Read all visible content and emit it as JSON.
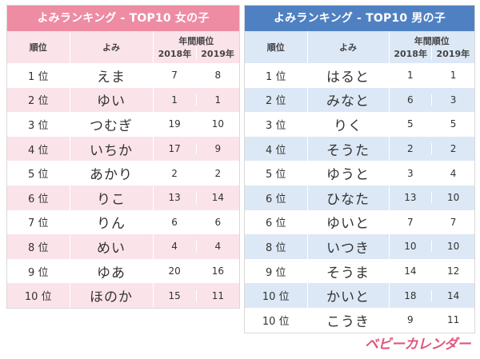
{
  "girls": {
    "title": "よみランキング - TOP10 女の子",
    "headers": {
      "rank": "順位",
      "name": "よみ",
      "yearly": "年間順位",
      "year1": "2018年",
      "year2": "2019年"
    },
    "rows": [
      {
        "rank": "1 位",
        "name": "えま",
        "y2018": "7",
        "y2019": "8"
      },
      {
        "rank": "2 位",
        "name": "ゆい",
        "y2018": "1",
        "y2019": "1"
      },
      {
        "rank": "3 位",
        "name": "つむぎ",
        "y2018": "19",
        "y2019": "10"
      },
      {
        "rank": "4 位",
        "name": "いちか",
        "y2018": "17",
        "y2019": "9"
      },
      {
        "rank": "5 位",
        "name": "あかり",
        "y2018": "2",
        "y2019": "2"
      },
      {
        "rank": "6 位",
        "name": "りこ",
        "y2018": "13",
        "y2019": "14"
      },
      {
        "rank": "7 位",
        "name": "りん",
        "y2018": "6",
        "y2019": "6"
      },
      {
        "rank": "8 位",
        "name": "めい",
        "y2018": "4",
        "y2019": "4"
      },
      {
        "rank": "9 位",
        "name": "ゆあ",
        "y2018": "20",
        "y2019": "16"
      },
      {
        "rank": "10 位",
        "name": "ほのか",
        "y2018": "15",
        "y2019": "11"
      }
    ]
  },
  "boys": {
    "title": "よみランキング - TOP10 男の子",
    "headers": {
      "rank": "順位",
      "name": "よみ",
      "yearly": "年間順位",
      "year1": "2018年",
      "year2": "2019年"
    },
    "rows": [
      {
        "rank": "1 位",
        "name": "はると",
        "y2018": "1",
        "y2019": "1"
      },
      {
        "rank": "2 位",
        "name": "みなと",
        "y2018": "6",
        "y2019": "3"
      },
      {
        "rank": "3 位",
        "name": "りく",
        "y2018": "5",
        "y2019": "5"
      },
      {
        "rank": "4 位",
        "name": "そうた",
        "y2018": "2",
        "y2019": "2"
      },
      {
        "rank": "5 位",
        "name": "ゆうと",
        "y2018": "3",
        "y2019": "4"
      },
      {
        "rank": "6 位",
        "name": "ひなた",
        "y2018": "13",
        "y2019": "10"
      },
      {
        "rank": "6 位",
        "name": "ゆいと",
        "y2018": "7",
        "y2019": "7"
      },
      {
        "rank": "8 位",
        "name": "いつき",
        "y2018": "10",
        "y2019": "10"
      },
      {
        "rank": "9 位",
        "name": "そうま",
        "y2018": "14",
        "y2019": "12"
      },
      {
        "rank": "10 位",
        "name": "かいと",
        "y2018": "18",
        "y2019": "14"
      },
      {
        "rank": "10 位",
        "name": "こうき",
        "y2018": "9",
        "y2019": "11"
      }
    ]
  },
  "logo": {
    "text": "ベビーカレンダー"
  },
  "colors": {
    "girls_accent": "#ee8ca4",
    "girls_stripe": "#fbe3ea",
    "boys_accent": "#4f81c2",
    "boys_stripe": "#dce8f6",
    "logo": "#e2557a"
  }
}
